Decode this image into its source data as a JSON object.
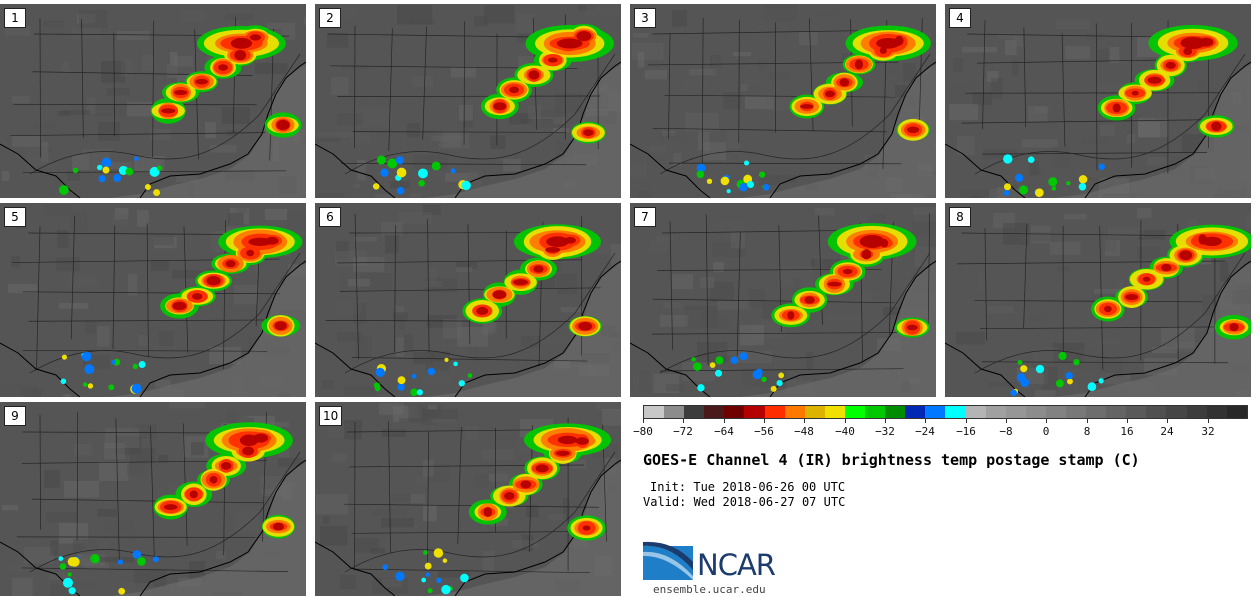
{
  "panels": [
    {
      "label": "1"
    },
    {
      "label": "2"
    },
    {
      "label": "3"
    },
    {
      "label": "4"
    },
    {
      "label": "5"
    },
    {
      "label": "6"
    },
    {
      "label": "7"
    },
    {
      "label": "8"
    },
    {
      "label": "9"
    },
    {
      "label": "10"
    }
  ],
  "colorbar": {
    "colors": [
      "#c8c8c8",
      "#8c8c8c",
      "#3c3c3c",
      "#4a1a1a",
      "#6e0000",
      "#b40000",
      "#ff2d00",
      "#ff7800",
      "#dcb400",
      "#f0e000",
      "#00ff00",
      "#00c800",
      "#008c00",
      "#0028b4",
      "#0078ff",
      "#00ffff",
      "#b4b4b4",
      "#a0a0a0",
      "#969696",
      "#8c8c8c",
      "#828282",
      "#787878",
      "#6e6e6e",
      "#646464",
      "#5a5a5a",
      "#505050",
      "#464646",
      "#3c3c3c",
      "#323232",
      "#282828"
    ],
    "ticks": [
      "−80",
      "−72",
      "−64",
      "−56",
      "−48",
      "−40",
      "−32",
      "−24",
      "−16",
      "−8",
      "0",
      "8",
      "16",
      "24",
      "32"
    ]
  },
  "title": "GOES-E Channel 4 (IR) brightness temp postage stamp (C)",
  "init": "Init: Tue 2018-06-26 00 UTC",
  "valid": "Valid: Wed 2018-06-27 07 UTC",
  "logo": {
    "name": "NCAR",
    "url": "ensemble.ucar.edu",
    "color": "#1c3c6e"
  }
}
